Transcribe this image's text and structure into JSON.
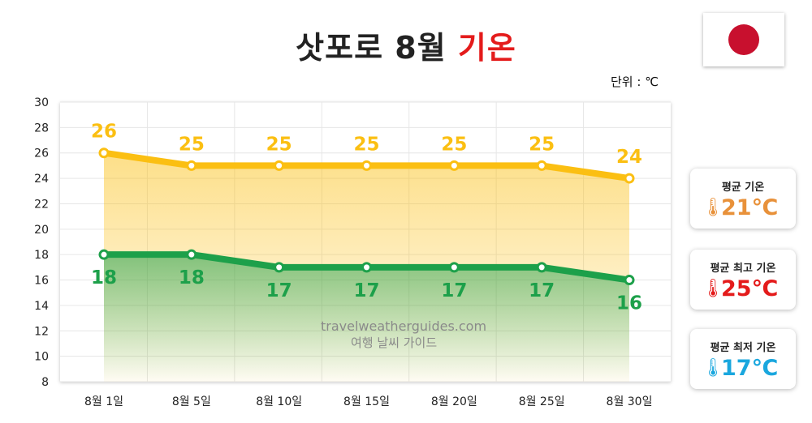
{
  "title": {
    "main": "삿포로 8월",
    "accent": "기온"
  },
  "unit_label": "단위 : ℃",
  "flag": {
    "name": "Japan"
  },
  "watermark": {
    "line1": "travelweatherguides.com",
    "line2": "여행 날씨 가이드"
  },
  "cards": {
    "avg": {
      "label": "평균 기온",
      "value": "21℃",
      "color": "#e8913a"
    },
    "max": {
      "label": "평균 최고 기온",
      "value": "25℃",
      "color": "#e41b1b"
    },
    "min": {
      "label": "평균 최저 기온",
      "value": "17℃",
      "color": "#1aa7de"
    }
  },
  "chart_data": {
    "type": "line",
    "categories": [
      "8월 1일",
      "8월 5일",
      "8월 10일",
      "8월 15일",
      "8월 20일",
      "8월 25일",
      "8월 30일"
    ],
    "series": [
      {
        "values": [
          26,
          25,
          25,
          25,
          25,
          25,
          24
        ],
        "color": "#fbbf12"
      },
      {
        "values": [
          18,
          18,
          17,
          17,
          17,
          17,
          16
        ],
        "color": "#1da04a"
      }
    ],
    "ylim": [
      8,
      30
    ],
    "yticks": [
      8,
      10,
      12,
      14,
      16,
      18,
      20,
      22,
      24,
      26,
      28,
      30
    ],
    "grid": true
  }
}
